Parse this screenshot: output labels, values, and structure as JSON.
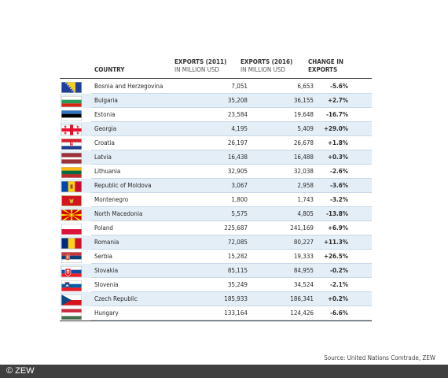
{
  "header": {
    "country": "COUNTRY",
    "exports_2011": "EXPORTS (2011)",
    "exports_2016": "EXPORTS (2016)",
    "unit_2011": "IN MILLION USD",
    "unit_2016": "IN MILLION USD",
    "change_line1": "CHANGE IN",
    "change_line2": "EXPORTS"
  },
  "rows": [
    {
      "country": "Bosnia and Herzegovina",
      "e2011": "7,051",
      "e2016": "6,653",
      "change": "-5.6%",
      "flag": "bosnia"
    },
    {
      "country": "Bulgaria",
      "e2011": "35,208",
      "e2016": "36,155",
      "change": "+2.7%",
      "flag": "bulgaria"
    },
    {
      "country": "Estonia",
      "e2011": "23,584",
      "e2016": "19,648",
      "change": "-16.7%",
      "flag": "estonia"
    },
    {
      "country": "Georgia",
      "e2011": "4,195",
      "e2016": "5,409",
      "change": "+29.0%",
      "flag": "georgia"
    },
    {
      "country": "Croatia",
      "e2011": "26,197",
      "e2016": "26,678",
      "change": "+1.8%",
      "flag": "croatia"
    },
    {
      "country": "Latvia",
      "e2011": "16,438",
      "e2016": "16,488",
      "change": "+0.3%",
      "flag": "latvia"
    },
    {
      "country": "Lithuania",
      "e2011": "32,905",
      "e2016": "32,038",
      "change": "-2.6%",
      "flag": "lithuania"
    },
    {
      "country": "Republic of Moldova",
      "e2011": "3,067",
      "e2016": "2,958",
      "change": "-3.6%",
      "flag": "moldova"
    },
    {
      "country": "Montenegro",
      "e2011": "1,800",
      "e2016": "1,743",
      "change": "-3.2%",
      "flag": "montenegro"
    },
    {
      "country": "North Macedonia",
      "e2011": "5,575",
      "e2016": "4,805",
      "change": "-13.8%",
      "flag": "macedonia"
    },
    {
      "country": "Poland",
      "e2011": "225,687",
      "e2016": "241,169",
      "change": "+6.9%",
      "flag": "poland"
    },
    {
      "country": "Romania",
      "e2011": "72,085",
      "e2016": "80,227",
      "change": "+11.3%",
      "flag": "romania"
    },
    {
      "country": "Serbia",
      "e2011": "15,282",
      "e2016": "19,333",
      "change": "+26.5%",
      "flag": "serbia"
    },
    {
      "country": "Slovakia",
      "e2011": "85,115",
      "e2016": "84,955",
      "change": "-0.2%",
      "flag": "slovakia"
    },
    {
      "country": "Slovenia",
      "e2011": "35,249",
      "e2016": "34,524",
      "change": "-2.1%",
      "flag": "slovenia"
    },
    {
      "country": "Czech Republic",
      "e2011": "185,933",
      "e2016": "186,341",
      "change": "+0.2%",
      "flag": "czech"
    },
    {
      "country": "Hungary",
      "e2011": "133,164",
      "e2016": "124,426",
      "change": "-6.6%",
      "flag": "hungary"
    }
  ],
  "source": "Source: United Nations Comtrade, ZEW",
  "copyright": "© ZEW",
  "colors": {
    "row_stripe": "#e4eef6",
    "row_separator": "#c7d8e6",
    "footer_bar": "#404040"
  }
}
